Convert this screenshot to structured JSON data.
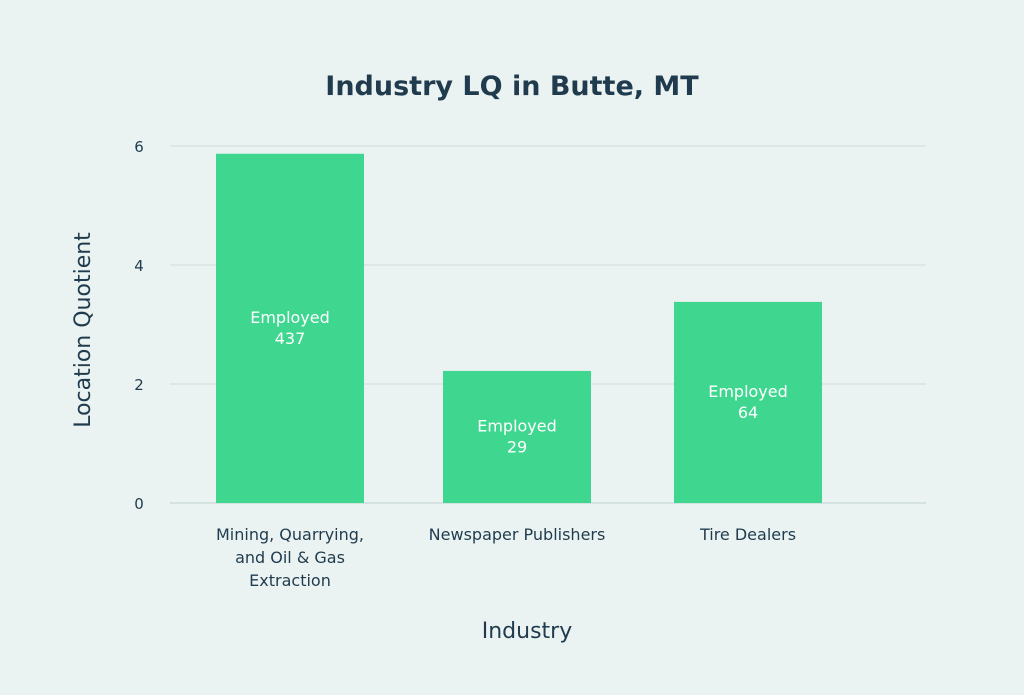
{
  "chart_data": {
    "type": "bar",
    "title": "Industry LQ in Butte, MT",
    "xlabel": "Industry",
    "ylabel": "Location Quotient",
    "ylim": [
      0,
      6
    ],
    "yticks": [
      0,
      2,
      4,
      6
    ],
    "grid": true,
    "bar_color": "#3fd790",
    "categories": [
      [
        "Mining, Quarrying,",
        "and Oil & Gas",
        "Extraction"
      ],
      [
        "Newspaper Publishers"
      ],
      [
        "Tire Dealers"
      ]
    ],
    "values": [
      5.87,
      2.22,
      3.38
    ],
    "annotations": [
      [
        "Employed",
        "437"
      ],
      [
        "Employed",
        "29"
      ],
      [
        "Employed",
        "64"
      ]
    ]
  }
}
